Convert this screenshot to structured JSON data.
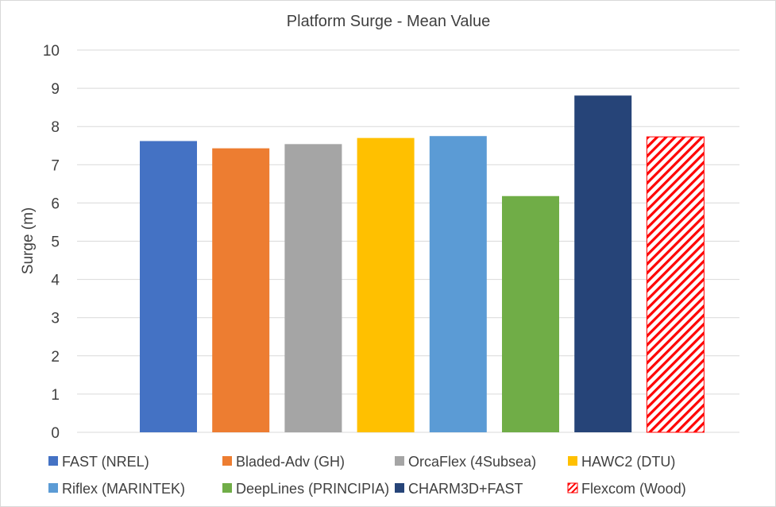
{
  "chart_data": {
    "type": "bar",
    "title": "Platform Surge - Mean Value",
    "ylabel": "Surge (m)",
    "xlabel": "",
    "ylim": [
      0,
      10
    ],
    "yticks": [
      0,
      1,
      2,
      3,
      4,
      5,
      6,
      7,
      8,
      9,
      10
    ],
    "grid": true,
    "legend_position": "bottom",
    "series": [
      {
        "name": "FAST (NREL)",
        "value": 7.62,
        "color": "#4472C4",
        "pattern": "solid"
      },
      {
        "name": "Bladed-Adv (GH)",
        "value": 7.43,
        "color": "#ED7D31",
        "pattern": "solid"
      },
      {
        "name": "OrcaFlex (4Subsea)",
        "value": 7.54,
        "color": "#A5A5A5",
        "pattern": "solid"
      },
      {
        "name": "HAWC2 (DTU)",
        "value": 7.7,
        "color": "#FFC000",
        "pattern": "solid"
      },
      {
        "name": "Riflex (MARINTEK)",
        "value": 7.75,
        "color": "#5B9BD5",
        "pattern": "solid"
      },
      {
        "name": "DeepLines (PRINCIPIA)",
        "value": 6.18,
        "color": "#70AD47",
        "pattern": "solid"
      },
      {
        "name": "CHARM3D+FAST",
        "value": 8.81,
        "color": "#264478",
        "pattern": "solid"
      },
      {
        "name": "Flexcom (Wood)",
        "value": 7.73,
        "color": "#FF0000",
        "pattern": "hatch"
      }
    ]
  }
}
